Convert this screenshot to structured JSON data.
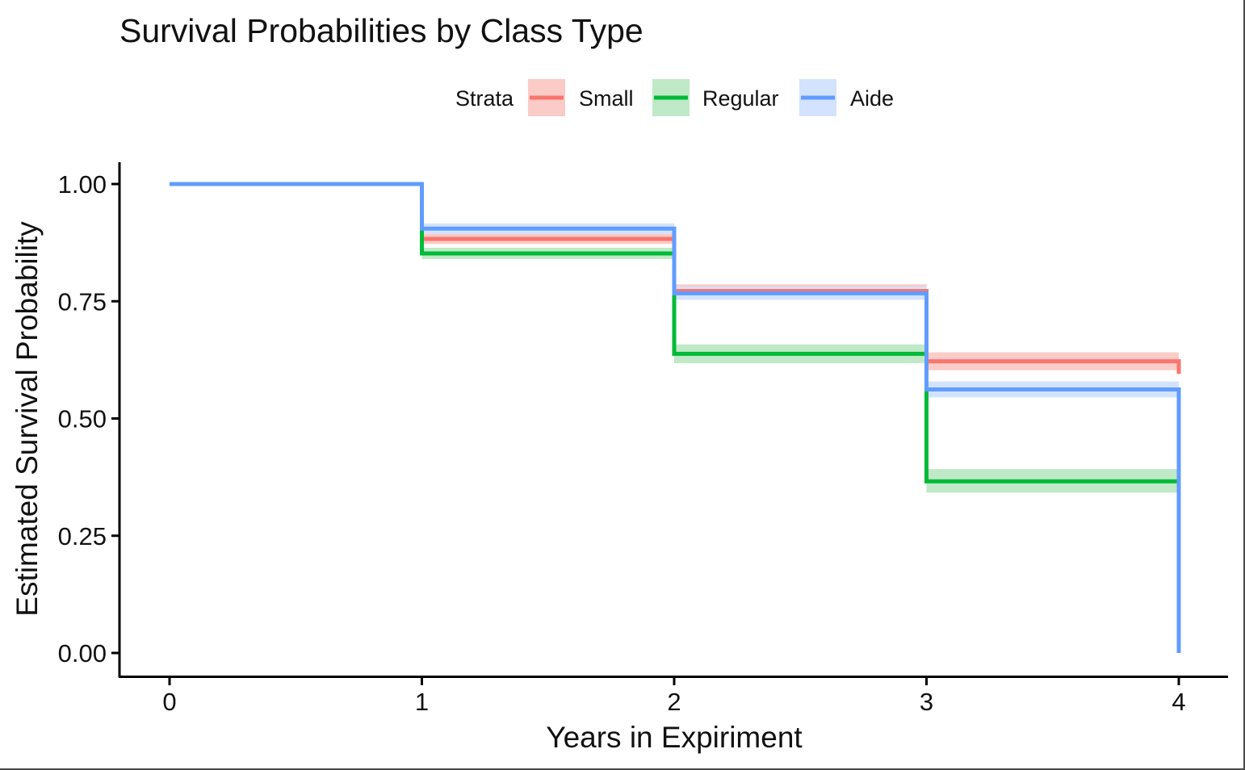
{
  "chart_data": {
    "type": "line",
    "step": true,
    "title": "Survival Probabilities by Class Type",
    "xlabel": "Years in Expiriment",
    "ylabel": "Estimated Survival Probability",
    "xlim": [
      0,
      4
    ],
    "ylim": [
      0,
      1
    ],
    "x_ticks": [
      0,
      1,
      2,
      3,
      4
    ],
    "x_tick_labels": [
      "0",
      "1",
      "2",
      "3",
      "4"
    ],
    "y_ticks": [
      0,
      0.25,
      0.5,
      0.75,
      1
    ],
    "y_tick_labels": [
      "0.00",
      "0.25",
      "0.50",
      "0.75",
      "1.00"
    ],
    "grid": false,
    "legend": {
      "title": "Strata",
      "position": "top"
    },
    "x": [
      0,
      1,
      2,
      3,
      4
    ],
    "series": [
      {
        "name": "Small",
        "color": "#F8766D",
        "band_color": "#FBCBC7",
        "values": [
          1.0,
          0.883,
          0.772,
          0.622,
          0.595
        ],
        "lower": [
          1.0,
          0.872,
          0.758,
          0.603,
          0.595
        ],
        "upper": [
          1.0,
          0.894,
          0.786,
          0.641,
          0.595
        ]
      },
      {
        "name": "Regular",
        "color": "#00BA38",
        "band_color": "#BFE9C7",
        "values": [
          1.0,
          0.852,
          0.638,
          0.366,
          0.366
        ],
        "lower": [
          1.0,
          0.84,
          0.618,
          0.342,
          0.342
        ],
        "upper": [
          1.0,
          0.864,
          0.658,
          0.392,
          0.392
        ]
      },
      {
        "name": "Aide",
        "color": "#619CFF",
        "band_color": "#D3E3FD",
        "values": [
          1.0,
          0.905,
          0.767,
          0.562,
          0.0
        ],
        "lower": [
          1.0,
          0.894,
          0.753,
          0.545,
          0.0
        ],
        "upper": [
          1.0,
          0.916,
          0.781,
          0.579,
          0.0
        ]
      }
    ]
  }
}
